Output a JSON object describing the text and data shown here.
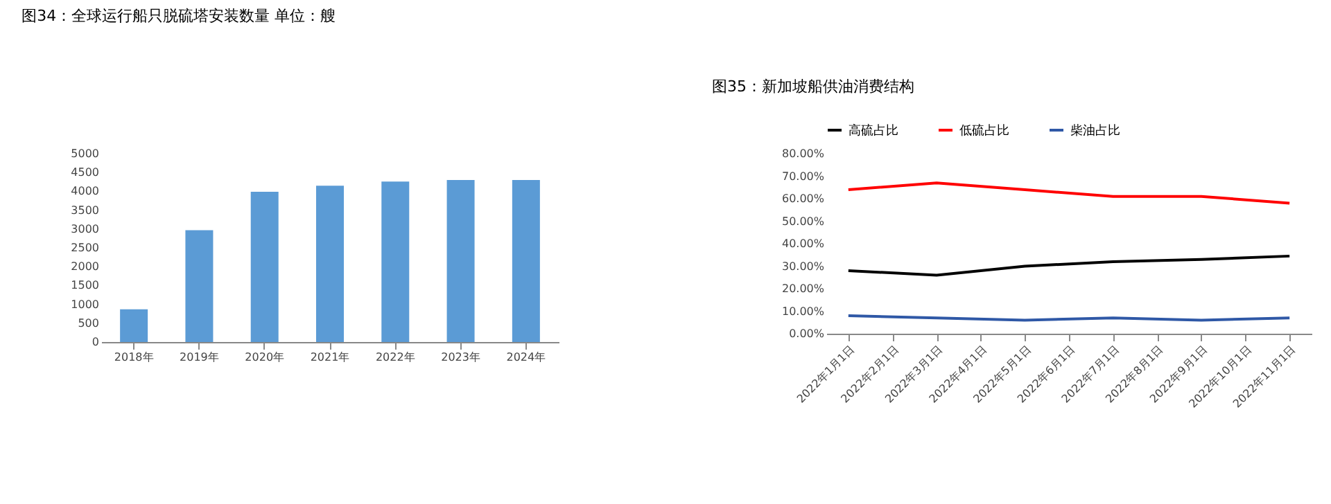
{
  "chart_data": [
    {
      "type": "bar",
      "title": "图34：全球运行船只脱硫塔安装数量 单位：艘",
      "categories": [
        "2018年",
        "2019年",
        "2020年",
        "2021年",
        "2022年",
        "2023年",
        "2024年"
      ],
      "values": [
        870,
        2970,
        3990,
        4150,
        4260,
        4300,
        4300
      ],
      "color": "#5b9bd5",
      "ylim": [
        0,
        5000
      ],
      "yticks": [
        0,
        500,
        1000,
        1500,
        2000,
        2500,
        3000,
        3500,
        4000,
        4500,
        5000
      ],
      "grid": false
    },
    {
      "type": "line",
      "title": "图35：新加坡船供油消费结构",
      "categories": [
        "2022年1月1日",
        "2022年2月1日",
        "2022年3月1日",
        "2022年4月1日",
        "2022年5月1日",
        "2022年6月1日",
        "2022年7月1日",
        "2022年8月1日",
        "2022年9月1日",
        "2022年10月1日",
        "2022年11月1日"
      ],
      "series": [
        {
          "name": "高硫占比",
          "color": "#000000",
          "values": [
            28,
            null,
            26,
            null,
            30,
            null,
            32,
            null,
            33,
            null,
            34.5
          ]
        },
        {
          "name": "低硫占比",
          "color": "#ff0000",
          "values": [
            64,
            null,
            67,
            null,
            64,
            null,
            61,
            null,
            61,
            null,
            58
          ]
        },
        {
          "name": "柴油占比",
          "color": "#2f58a6",
          "values": [
            8,
            null,
            7,
            null,
            6,
            null,
            7,
            null,
            6,
            null,
            7
          ]
        }
      ],
      "ylim": [
        0,
        80
      ],
      "yticks": [
        {
          "value": 0,
          "label": "0.00%"
        },
        {
          "value": 10,
          "label": "10.00%"
        },
        {
          "value": 20,
          "label": "20.00%"
        },
        {
          "value": 30,
          "label": "30.00%"
        },
        {
          "value": 40,
          "label": "40.00%"
        },
        {
          "value": 50,
          "label": "50.00%"
        },
        {
          "value": 60,
          "label": "60.00%"
        },
        {
          "value": 70,
          "label": "70.00%"
        },
        {
          "value": 80,
          "label": "80.00%"
        }
      ],
      "grid": false,
      "legend": "top"
    }
  ]
}
